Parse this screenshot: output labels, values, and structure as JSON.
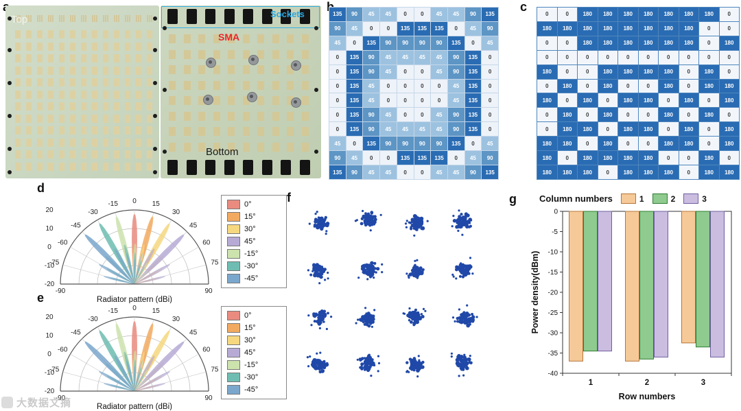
{
  "panel_letters": {
    "a": "a",
    "b": "b",
    "c": "c",
    "d": "d",
    "e": "e",
    "f": "f",
    "g": "g"
  },
  "panel_a": {
    "top_label": "Top",
    "sma_label": "SMA",
    "sockets_label": "Sockets",
    "bottom_label": "Bottom",
    "sma_color": "#e8262a",
    "sockets_color": "#2aa7df"
  },
  "watermark": {
    "text": "大数据文摘"
  },
  "chart_data": [
    {
      "id": "b",
      "type": "heatmap",
      "unit": "phase (deg)",
      "levels": [
        0,
        45,
        90,
        135
      ],
      "palette": {
        "0": "#eef3f9",
        "45": "#9cc2e0",
        "90": "#5d95c5",
        "135": "#2a6cb3"
      },
      "values": [
        [
          135,
          90,
          45,
          45,
          0,
          0,
          45,
          45,
          90,
          135
        ],
        [
          90,
          45,
          0,
          0,
          135,
          135,
          135,
          0,
          45,
          90
        ],
        [
          45,
          0,
          135,
          90,
          90,
          90,
          90,
          135,
          0,
          45
        ],
        [
          0,
          135,
          90,
          45,
          45,
          45,
          45,
          90,
          135,
          0
        ],
        [
          0,
          135,
          90,
          45,
          0,
          0,
          45,
          90,
          135,
          0
        ],
        [
          0,
          135,
          45,
          0,
          0,
          0,
          0,
          45,
          135,
          0
        ],
        [
          0,
          135,
          45,
          0,
          0,
          0,
          0,
          45,
          135,
          0
        ],
        [
          0,
          135,
          90,
          45,
          0,
          0,
          45,
          90,
          135,
          0
        ],
        [
          0,
          135,
          90,
          45,
          45,
          45,
          45,
          90,
          135,
          0
        ],
        [
          45,
          0,
          135,
          90,
          90,
          90,
          90,
          135,
          0,
          45
        ],
        [
          90,
          45,
          0,
          0,
          135,
          135,
          135,
          0,
          45,
          90
        ],
        [
          135,
          90,
          45,
          45,
          0,
          0,
          45,
          45,
          90,
          135
        ]
      ]
    },
    {
      "id": "c",
      "type": "heatmap",
      "unit": "phase (deg)",
      "levels": [
        0,
        180
      ],
      "palette": {
        "0": "#f2f6fb",
        "180": "#2a6cb3"
      },
      "values": [
        [
          0,
          0,
          180,
          180,
          180,
          180,
          180,
          180,
          180,
          0
        ],
        [
          180,
          180,
          180,
          180,
          180,
          180,
          180,
          180,
          0,
          0
        ],
        [
          0,
          0,
          180,
          180,
          180,
          180,
          180,
          180,
          0,
          180
        ],
        [
          0,
          0,
          0,
          0,
          0,
          0,
          0,
          0,
          0,
          0
        ],
        [
          180,
          0,
          0,
          180,
          180,
          180,
          180,
          0,
          180,
          0
        ],
        [
          0,
          180,
          0,
          180,
          0,
          0,
          180,
          0,
          180,
          180
        ],
        [
          180,
          0,
          180,
          0,
          180,
          180,
          0,
          180,
          0,
          180
        ],
        [
          0,
          180,
          0,
          180,
          0,
          0,
          180,
          0,
          180,
          0
        ],
        [
          0,
          180,
          180,
          0,
          180,
          180,
          0,
          180,
          0,
          180
        ],
        [
          180,
          180,
          0,
          180,
          0,
          0,
          180,
          180,
          0,
          180
        ],
        [
          180,
          0,
          180,
          180,
          180,
          180,
          0,
          0,
          180,
          0
        ],
        [
          180,
          180,
          180,
          0,
          180,
          180,
          180,
          0,
          180,
          180
        ]
      ]
    },
    {
      "id": "d",
      "type": "polar-pattern",
      "title": "Radiator pattern (dBi)",
      "r_ticks": [
        20,
        10,
        0,
        -10,
        -20
      ],
      "r_range": [
        -20,
        20
      ],
      "theta_ticks": [
        -90,
        -75,
        -60,
        -45,
        -30,
        -15,
        0,
        15,
        30,
        45,
        60,
        75,
        90
      ],
      "series": [
        {
          "label": "0°",
          "angle": 0,
          "color": "#e98b7f"
        },
        {
          "label": "15°",
          "angle": 15,
          "color": "#f2aa60"
        },
        {
          "label": "30°",
          "angle": 30,
          "color": "#f6d880"
        },
        {
          "label": "45°",
          "angle": 45,
          "color": "#b7abd6"
        },
        {
          "label": "-15°",
          "angle": -15,
          "color": "#cde3ae"
        },
        {
          "label": "-30°",
          "angle": -30,
          "color": "#6fbdb2"
        },
        {
          "label": "-45°",
          "angle": -45,
          "color": "#7ba7cc"
        }
      ]
    },
    {
      "id": "e",
      "type": "polar-pattern",
      "title": "Radiator pattern (dBi)",
      "r_ticks": [
        20,
        10,
        0,
        -10,
        -20
      ],
      "r_range": [
        -20,
        20
      ],
      "theta_ticks": [
        -90,
        -75,
        -60,
        -45,
        -30,
        -15,
        0,
        15,
        30,
        45,
        60,
        75,
        90
      ],
      "series": [
        {
          "label": "0°",
          "angle": 0,
          "color": "#e98b7f"
        },
        {
          "label": "15°",
          "angle": 15,
          "color": "#f2aa60"
        },
        {
          "label": "30°",
          "angle": 30,
          "color": "#f6d880"
        },
        {
          "label": "45°",
          "angle": 45,
          "color": "#b7abd6"
        },
        {
          "label": "-15°",
          "angle": -15,
          "color": "#cde3ae"
        },
        {
          "label": "-30°",
          "angle": -30,
          "color": "#6fbdb2"
        },
        {
          "label": "-45°",
          "angle": -45,
          "color": "#7ba7cc"
        }
      ]
    },
    {
      "id": "f",
      "type": "scatter-grid",
      "rows": 4,
      "cols": 4,
      "color": "#2048a8",
      "spots": [
        {
          "x": 0.1,
          "y": 0.09,
          "r": 13
        },
        {
          "x": 0.37,
          "y": 0.07,
          "r": 14
        },
        {
          "x": 0.63,
          "y": 0.09,
          "r": 13
        },
        {
          "x": 0.88,
          "y": 0.08,
          "r": 14
        },
        {
          "x": 0.09,
          "y": 0.36,
          "r": 12
        },
        {
          "x": 0.37,
          "y": 0.35,
          "r": 13
        },
        {
          "x": 0.63,
          "y": 0.36,
          "r": 11
        },
        {
          "x": 0.89,
          "y": 0.35,
          "r": 13
        },
        {
          "x": 0.1,
          "y": 0.62,
          "r": 13
        },
        {
          "x": 0.36,
          "y": 0.63,
          "r": 12
        },
        {
          "x": 0.62,
          "y": 0.62,
          "r": 12
        },
        {
          "x": 0.9,
          "y": 0.63,
          "r": 13
        },
        {
          "x": 0.09,
          "y": 0.89,
          "r": 13
        },
        {
          "x": 0.36,
          "y": 0.88,
          "r": 13
        },
        {
          "x": 0.62,
          "y": 0.89,
          "r": 12
        },
        {
          "x": 0.88,
          "y": 0.88,
          "r": 14
        }
      ]
    },
    {
      "id": "g",
      "type": "bar",
      "legend_title": "Column numbers",
      "categories": [
        "1",
        "2",
        "3"
      ],
      "series": [
        {
          "name": "1",
          "color": "#f6c998",
          "edge": "#b5763a",
          "values": [
            -37,
            -37,
            -32.5
          ]
        },
        {
          "name": "2",
          "color": "#8fca8f",
          "edge": "#2e7d32",
          "values": [
            -34.5,
            -36.5,
            -33.5
          ]
        },
        {
          "name": "3",
          "color": "#cabde0",
          "edge": "#6f5fa0",
          "values": [
            -34.5,
            -36,
            -36
          ]
        }
      ],
      "xlabel": "Row numbers",
      "ylabel": "Power density(dBm)",
      "ylim": [
        0,
        -40
      ],
      "ytick_step": 5
    }
  ]
}
